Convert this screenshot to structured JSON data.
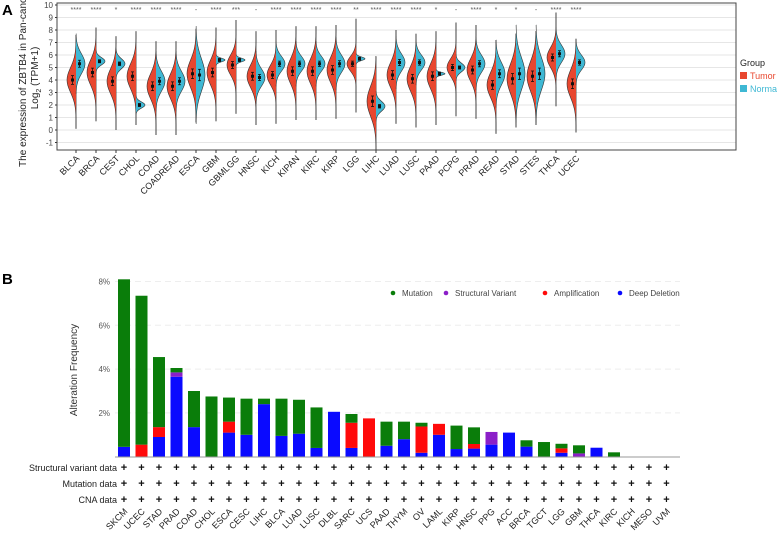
{
  "panel_labels": {
    "a": "A",
    "b": "B"
  },
  "chart_data": [
    {
      "type": "violin",
      "panel": "A",
      "ylabel_line1": "The expression of ZBTB4 in Pan-cancer",
      "ylabel_line2_prefix": "Log",
      "ylabel_line2_sub": "2",
      "ylabel_line2_suffix": " (TPM+1)",
      "ylim": [
        -1,
        10
      ],
      "yticks": [
        -1,
        0,
        1,
        2,
        3,
        4,
        5,
        6,
        7,
        8,
        9,
        10
      ],
      "grid": true,
      "legend": {
        "title": "Group",
        "placement": "right",
        "entries": [
          "Tumor",
          "Normal"
        ]
      },
      "colors": {
        "Tumor": "#e8472f",
        "Normal": "#3fb8d4"
      },
      "categories": [
        "BLCA",
        "BRCA",
        "CEST",
        "CHOL",
        "COAD",
        "COADREAD",
        "ESCA",
        "GBM",
        "GBMLGG",
        "HNSC",
        "KICH",
        "KIPAN",
        "KIRC",
        "KIRP",
        "LGG",
        "LIHC",
        "LUAD",
        "LUSC",
        "PAAD",
        "PCPG",
        "PRAD",
        "READ",
        "STAD",
        "STES",
        "THCA",
        "UCEC"
      ],
      "significance": [
        "****",
        "****",
        "*",
        "****",
        "****",
        "****",
        "-",
        "****",
        "***",
        "-",
        "****",
        "****",
        "****",
        "****",
        "**",
        "****",
        "****",
        "****",
        "*",
        "-",
        "****",
        "*",
        "*",
        "-",
        "****",
        "****"
      ],
      "tumor_median": [
        4.0,
        4.6,
        3.9,
        4.3,
        3.5,
        3.5,
        4.5,
        4.6,
        5.2,
        4.3,
        4.4,
        4.7,
        4.7,
        4.8,
        5.3,
        2.3,
        4.4,
        4.1,
        4.3,
        5.0,
        4.8,
        3.6,
        4.1,
        4.3,
        5.8,
        3.7
      ],
      "normal_median": [
        5.3,
        5.5,
        5.3,
        2.0,
        3.9,
        3.9,
        4.4,
        5.6,
        5.6,
        4.2,
        5.3,
        5.3,
        5.3,
        5.3,
        5.7,
        1.9,
        5.4,
        5.4,
        4.5,
        5.0,
        5.3,
        4.5,
        4.5,
        4.5,
        6.1,
        5.4
      ],
      "tumor_sd": [
        1.0,
        1.0,
        1.0,
        1.0,
        1.0,
        1.0,
        1.1,
        1.0,
        0.8,
        0.9,
        0.8,
        1.0,
        1.0,
        1.0,
        0.6,
        1.2,
        1.0,
        1.0,
        1.0,
        0.7,
        0.9,
        1.0,
        1.2,
        1.2,
        0.8,
        1.1
      ],
      "normal_sd": [
        0.8,
        0.3,
        0.4,
        0.25,
        0.8,
        0.8,
        1.3,
        0.15,
        0.15,
        0.7,
        0.6,
        0.6,
        0.6,
        0.7,
        0.15,
        0.4,
        0.7,
        0.6,
        0.12,
        0.35,
        0.7,
        0.9,
        1.3,
        1.3,
        0.7,
        0.6
      ]
    },
    {
      "type": "bar",
      "panel": "B",
      "stacked": true,
      "ylabel": "Alteration Frequency",
      "ylim": [
        0,
        8.5
      ],
      "yticks": [
        "2%",
        "4%",
        "6%",
        "8%"
      ],
      "ytick_values": [
        2,
        4,
        6,
        8
      ],
      "legend_placement": "top-right",
      "categories": [
        "SKCM",
        "UCEC",
        "STAD",
        "PRAD",
        "COAD",
        "CHOL",
        "ESCA",
        "CESC",
        "LIHC",
        "BLCA",
        "LUAD",
        "LUSC",
        "DLBL",
        "SARC",
        "UCS",
        "PAAD",
        "THYM",
        "OV",
        "LAML",
        "KIRP",
        "HNSC",
        "PPG",
        "ACC",
        "BRCA",
        "TGCT",
        "LGG",
        "GBM",
        "THCA",
        "KIRC",
        "KICH",
        "MESO",
        "UVM"
      ],
      "series": [
        {
          "name": "Deep Deletion",
          "color": "#0a0aff",
          "values": [
            0.45,
            0,
            0.9,
            3.65,
            1.35,
            0,
            1.1,
            1.0,
            2.4,
            0.95,
            1.05,
            0.4,
            2.05,
            0.4,
            0,
            0.5,
            0.8,
            0.18,
            1.0,
            0.35,
            0.37,
            0.55,
            1.1,
            0.46,
            0,
            0.18,
            0,
            0.41,
            0,
            0,
            0,
            0
          ]
        },
        {
          "name": "Amplification",
          "color": "#ff0a0a",
          "values": [
            0,
            0.55,
            0.45,
            0,
            0,
            0,
            0.5,
            0,
            0,
            0,
            0,
            0,
            0,
            1.15,
            1.75,
            0,
            0,
            1.2,
            0.5,
            0,
            0.21,
            0,
            0,
            0,
            0,
            0.2,
            0,
            0,
            0,
            0,
            0,
            0
          ]
        },
        {
          "name": "Structural Variant",
          "color": "#8b1fc8",
          "values": [
            0,
            0,
            0,
            0.2,
            0,
            0,
            0,
            0,
            0,
            0,
            0,
            0,
            0,
            0,
            0,
            0,
            0,
            0,
            0,
            0,
            0,
            0.58,
            0,
            0,
            0,
            0,
            0.15,
            0,
            0,
            0,
            0,
            0
          ]
        },
        {
          "name": "Mutation",
          "color": "#0a7d0a",
          "values": [
            7.65,
            6.8,
            3.2,
            0.2,
            1.65,
            2.75,
            1.1,
            1.65,
            0.25,
            1.7,
            1.55,
            1.85,
            0,
            0.4,
            0,
            1.1,
            0.8,
            0.17,
            0,
            1.07,
            0.76,
            0,
            0,
            0.29,
            0.67,
            0.21,
            0.37,
            0,
            0.2,
            0,
            0,
            0
          ]
        }
      ],
      "legend_order": [
        "Mutation",
        "Structural Variant",
        "Amplification",
        "Deep Deletion"
      ],
      "data_rows": [
        "Structural variant data",
        "Mutation data",
        "CNA data"
      ],
      "row_marker": "+"
    }
  ]
}
